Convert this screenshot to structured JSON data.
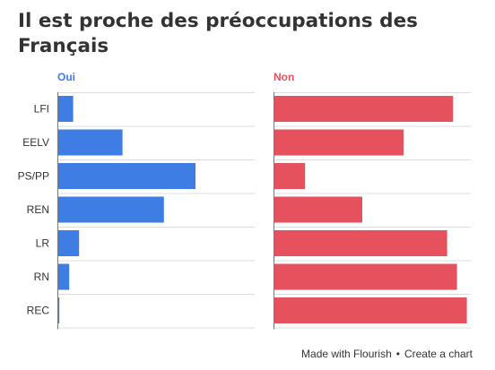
{
  "title": "Il est proche des préoccupations des Français",
  "panels": {
    "left_label": "Oui",
    "right_label": "Non"
  },
  "colors": {
    "oui": "#3d7de4",
    "non": "#e5525e",
    "grid": "#dddddd",
    "axis": "#777777",
    "text": "#333333"
  },
  "chart_data": {
    "type": "bar",
    "orientation": "horizontal",
    "categories": [
      "LFI",
      "EELV",
      "PS/PP",
      "REN",
      "LR",
      "RN",
      "REC"
    ],
    "series": [
      {
        "name": "Oui",
        "values": [
          8,
          33,
          70,
          54,
          11,
          6,
          1
        ]
      },
      {
        "name": "Non",
        "values": [
          91,
          66,
          16,
          45,
          88,
          93,
          98
        ]
      }
    ],
    "xlim": [
      0,
      100
    ],
    "grid": true,
    "layout": "small-multiples"
  },
  "footer": {
    "made_with": "Made with Flourish",
    "separator": "•",
    "create": "Create a chart"
  }
}
